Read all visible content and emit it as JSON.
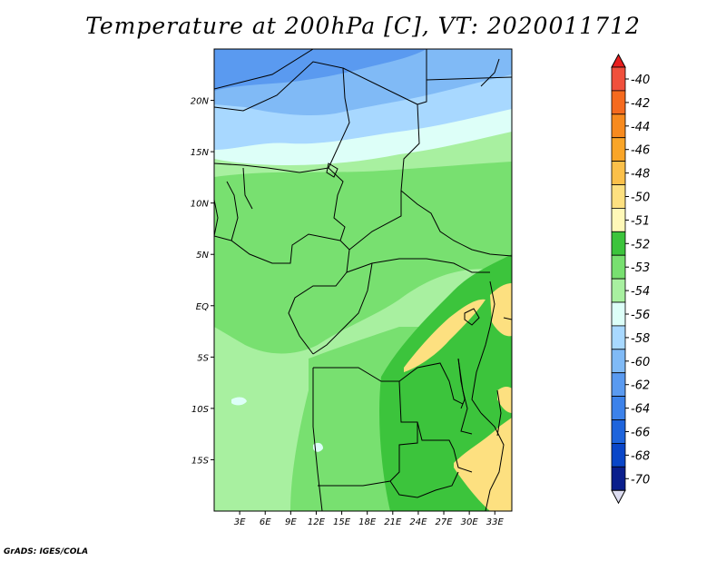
{
  "title": "Temperature at 200hPa [C], VT: 2020011712",
  "credit": "GrADS: IGES/COLA",
  "map": {
    "lon_range": [
      0,
      35
    ],
    "lat_range": [
      -20,
      25
    ],
    "lat_ticks": [
      {
        "value": 20,
        "label": "20N"
      },
      {
        "value": 15,
        "label": "15N"
      },
      {
        "value": 10,
        "label": "10N"
      },
      {
        "value": 5,
        "label": "5N"
      },
      {
        "value": 0,
        "label": "EQ"
      },
      {
        "value": -5,
        "label": "5S"
      },
      {
        "value": -10,
        "label": "10S"
      },
      {
        "value": -15,
        "label": "15S"
      }
    ],
    "lon_ticks": [
      {
        "value": 3,
        "label": "3E"
      },
      {
        "value": 6,
        "label": "6E"
      },
      {
        "value": 9,
        "label": "9E"
      },
      {
        "value": 12,
        "label": "12E"
      },
      {
        "value": 15,
        "label": "15E"
      },
      {
        "value": 18,
        "label": "18E"
      },
      {
        "value": 21,
        "label": "21E"
      },
      {
        "value": 24,
        "label": "24E"
      },
      {
        "value": 27,
        "label": "27E"
      },
      {
        "value": 30,
        "label": "30E"
      },
      {
        "value": 33,
        "label": "33E"
      }
    ]
  },
  "colorbar": {
    "levels": [
      {
        "label": "-40",
        "color": "#f0503c"
      },
      {
        "label": "-42",
        "color": "#f56a1e"
      },
      {
        "label": "-44",
        "color": "#f78a1e"
      },
      {
        "label": "-46",
        "color": "#f9a528"
      },
      {
        "label": "-48",
        "color": "#fbc04a"
      },
      {
        "label": "-50",
        "color": "#fde080"
      },
      {
        "label": "-51",
        "color": "#fff8b8"
      },
      {
        "label": "-52",
        "color": "#3cc43c"
      },
      {
        "label": "-53",
        "color": "#78e070"
      },
      {
        "label": "-54",
        "color": "#a8f0a0"
      },
      {
        "label": "-56",
        "color": "#ddfff8"
      },
      {
        "label": "-58",
        "color": "#a8d8ff"
      },
      {
        "label": "-60",
        "color": "#80baf6"
      },
      {
        "label": "-62",
        "color": "#5a9af0"
      },
      {
        "label": "-64",
        "color": "#3c82ea"
      },
      {
        "label": "-66",
        "color": "#1e64dc"
      },
      {
        "label": "-68",
        "color": "#0a46c8"
      },
      {
        "label": "-70",
        "color": "#0a1e8c"
      }
    ],
    "top_color": "#e81e1e",
    "bottom_color": "#dcdcf0"
  }
}
